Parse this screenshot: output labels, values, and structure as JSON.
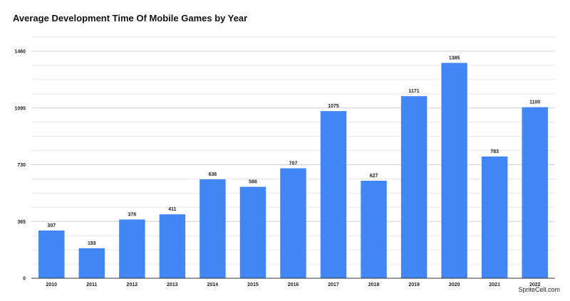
{
  "chart_data": {
    "type": "bar",
    "title": "Average Development Time Of Mobile Games by Year",
    "xlabel": "",
    "ylabel": "",
    "categories": [
      "2010",
      "2011",
      "2012",
      "2013",
      "2014",
      "2015",
      "2016",
      "2017",
      "2018",
      "2019",
      "2020",
      "2021",
      "2022"
    ],
    "values": [
      307,
      193,
      378,
      411,
      636,
      588,
      707,
      1075,
      627,
      1171,
      1385,
      783,
      1100
    ],
    "data_labels": [
      "307",
      "193",
      "378",
      "411",
      "636",
      "588",
      "707",
      "1075",
      "627",
      "1171",
      "1385",
      "783",
      "1100"
    ],
    "ylim": [
      0,
      1460
    ],
    "yticks": [
      0,
      365,
      730,
      1095,
      1460
    ],
    "ytick_labels": [
      "0",
      "365",
      "730",
      "1095",
      "1460"
    ],
    "bar_color": "#4285f4",
    "grid": true,
    "legend": "none"
  },
  "watermark": "SpriteCell.com"
}
